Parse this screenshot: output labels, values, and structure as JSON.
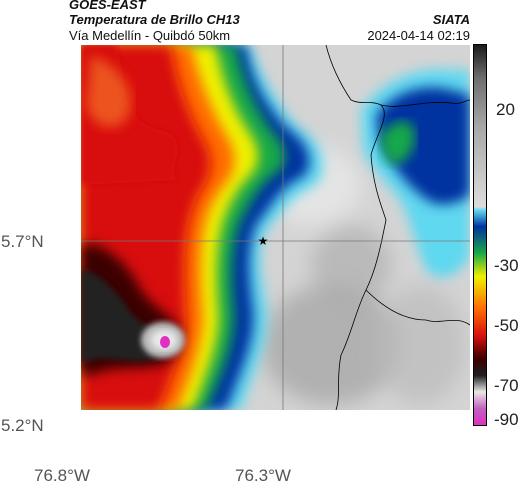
{
  "header": {
    "satellite": "GOES-EAST",
    "product": "Temperatura de Brillo CH13",
    "agency": "SIATA",
    "region": "Vía Medellín - Quibdó 50km",
    "datetime": "2024-04-14 02:19"
  },
  "axes": {
    "lat_ticks": [
      "5.7°N",
      "5.2°N"
    ],
    "lon_ticks": [
      "76.8°W",
      "76.3°W"
    ]
  },
  "colorbar": {
    "ticks": [
      "20",
      "-30",
      "-50",
      "-70",
      "-90"
    ],
    "stops": [
      {
        "t": 25,
        "color": "#1a1a1a"
      },
      {
        "t": 15,
        "color": "#6e6e6e"
      },
      {
        "t": 0,
        "color": "#a8a8a8"
      },
      {
        "t": -24,
        "color": "#dcdcdc"
      },
      {
        "t": -25,
        "color": "#5fd8f0"
      },
      {
        "t": -30,
        "color": "#0033a0"
      },
      {
        "t": -38,
        "color": "#18a848"
      },
      {
        "t": -45,
        "color": "#f0f000"
      },
      {
        "t": -55,
        "color": "#ff6a00"
      },
      {
        "t": -63,
        "color": "#d81010"
      },
      {
        "t": -70,
        "color": "#3a0000"
      },
      {
        "t": -75,
        "color": "#202020"
      },
      {
        "t": -80,
        "color": "#e8e8e8"
      },
      {
        "t": -85,
        "color": "#c060c0"
      },
      {
        "t": -90,
        "color": "#e030c0"
      }
    ]
  },
  "marker": {
    "name": "Quibdó",
    "symbol": "★"
  }
}
